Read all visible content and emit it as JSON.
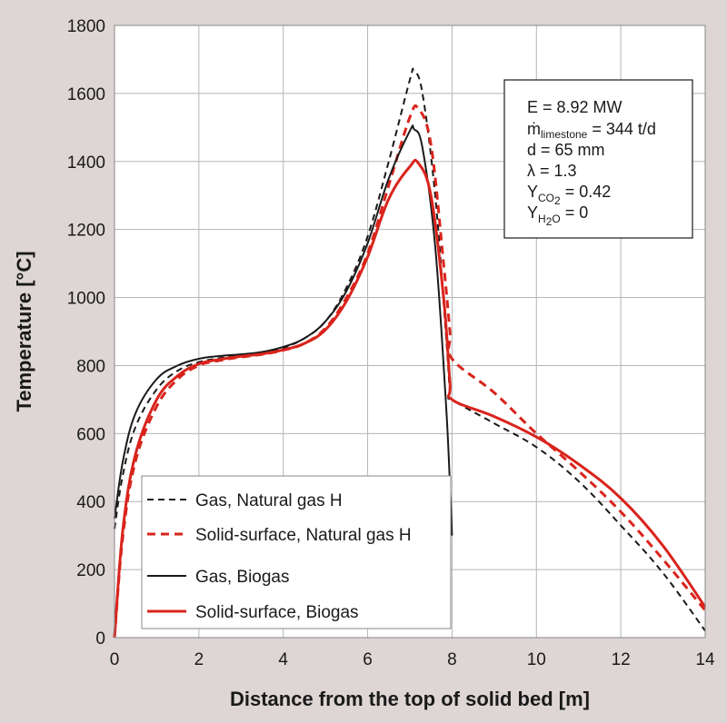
{
  "chart_data": {
    "type": "line",
    "xlabel": "Distance from the top of solid bed [m]",
    "ylabel": "Temperature [°C]",
    "xlim": [
      0,
      14
    ],
    "ylim": [
      0,
      1800
    ],
    "xticks": [
      0,
      2,
      4,
      6,
      8,
      10,
      12,
      14
    ],
    "yticks": [
      0,
      200,
      400,
      600,
      800,
      1000,
      1200,
      1400,
      1600,
      1800
    ],
    "grid": true,
    "legend_position": "bottom-left",
    "series": [
      {
        "name": "Gas, Natural gas H",
        "color": "#1a1a1a",
        "dash": "dashed",
        "points": [
          [
            0,
            320
          ],
          [
            0.2,
            480
          ],
          [
            0.5,
            620
          ],
          [
            1,
            730
          ],
          [
            1.5,
            785
          ],
          [
            2,
            810
          ],
          [
            2.5,
            822
          ],
          [
            3,
            830
          ],
          [
            3.5,
            838
          ],
          [
            4,
            852
          ],
          [
            4.5,
            880
          ],
          [
            5,
            930
          ],
          [
            5.5,
            1030
          ],
          [
            6,
            1180
          ],
          [
            6.5,
            1400
          ],
          [
            7,
            1640
          ],
          [
            7.1,
            1665
          ],
          [
            7.3,
            1600
          ],
          [
            7.6,
            1300
          ],
          [
            7.85,
            900
          ],
          [
            7.95,
            720
          ],
          [
            8,
            700
          ],
          [
            9,
            630
          ],
          [
            10,
            560
          ],
          [
            11,
            460
          ],
          [
            12,
            330
          ],
          [
            13,
            190
          ],
          [
            14,
            20
          ]
        ]
      },
      {
        "name": "Solid-surface, Natural gas H",
        "color": "#d9241c",
        "dash": "dashed",
        "points": [
          [
            0,
            0
          ],
          [
            0.2,
            300
          ],
          [
            0.5,
            520
          ],
          [
            1,
            680
          ],
          [
            1.5,
            760
          ],
          [
            2,
            800
          ],
          [
            2.5,
            815
          ],
          [
            3,
            825
          ],
          [
            3.5,
            833
          ],
          [
            4,
            845
          ],
          [
            4.5,
            865
          ],
          [
            5,
            910
          ],
          [
            5.5,
            1000
          ],
          [
            6,
            1130
          ],
          [
            6.5,
            1330
          ],
          [
            7,
            1530
          ],
          [
            7.2,
            1555
          ],
          [
            7.5,
            1450
          ],
          [
            7.8,
            1100
          ],
          [
            7.95,
            900
          ],
          [
            8,
            820
          ],
          [
            9,
            720
          ],
          [
            10,
            600
          ],
          [
            11,
            490
          ],
          [
            12,
            370
          ],
          [
            13,
            230
          ],
          [
            14,
            80
          ]
        ]
      },
      {
        "name": "Gas, Biogas",
        "color": "#1a1a1a",
        "dash": "solid",
        "points": [
          [
            0,
            350
          ],
          [
            0.2,
            520
          ],
          [
            0.5,
            660
          ],
          [
            1,
            760
          ],
          [
            1.5,
            800
          ],
          [
            2,
            820
          ],
          [
            2.5,
            828
          ],
          [
            3,
            833
          ],
          [
            3.5,
            840
          ],
          [
            4,
            855
          ],
          [
            4.5,
            880
          ],
          [
            5,
            930
          ],
          [
            5.5,
            1020
          ],
          [
            6,
            1160
          ],
          [
            6.5,
            1350
          ],
          [
            7,
            1490
          ],
          [
            7.1,
            1495
          ],
          [
            7.3,
            1440
          ],
          [
            7.6,
            1150
          ],
          [
            7.85,
            700
          ],
          [
            7.95,
            450
          ],
          [
            8,
            300
          ]
        ]
      },
      {
        "name": "Solid-surface, Biogas",
        "color": "#d9241c",
        "dash": "solid",
        "points": [
          [
            0,
            0
          ],
          [
            0.2,
            320
          ],
          [
            0.5,
            540
          ],
          [
            1,
            700
          ],
          [
            1.5,
            770
          ],
          [
            2,
            805
          ],
          [
            2.5,
            818
          ],
          [
            3,
            827
          ],
          [
            3.5,
            834
          ],
          [
            4,
            846
          ],
          [
            4.5,
            865
          ],
          [
            5,
            905
          ],
          [
            5.5,
            990
          ],
          [
            6,
            1120
          ],
          [
            6.5,
            1290
          ],
          [
            7,
            1385
          ],
          [
            7.2,
            1395
          ],
          [
            7.5,
            1300
          ],
          [
            7.8,
            1000
          ],
          [
            7.95,
            750
          ],
          [
            8,
            700
          ],
          [
            9,
            650
          ],
          [
            10,
            590
          ],
          [
            11,
            510
          ],
          [
            12,
            410
          ],
          [
            13,
            270
          ],
          [
            14,
            90
          ]
        ]
      }
    ],
    "annotation": {
      "lines": [
        {
          "main": "E = 8.92 MW",
          "sub": ""
        },
        {
          "main": "ṁ",
          "sub": "limestone",
          "tail": " = 344 t/d"
        },
        {
          "main": "d = 65 mm",
          "sub": ""
        },
        {
          "main": "λ = 1.3",
          "sub": ""
        },
        {
          "main": "Υ",
          "sub": "CO",
          "sub2": "2",
          "tail": "  = 0.42"
        },
        {
          "main": "Υ",
          "sub": "H",
          "sub2": "2",
          "sub3": "O",
          "tail": "  = 0"
        }
      ]
    }
  }
}
